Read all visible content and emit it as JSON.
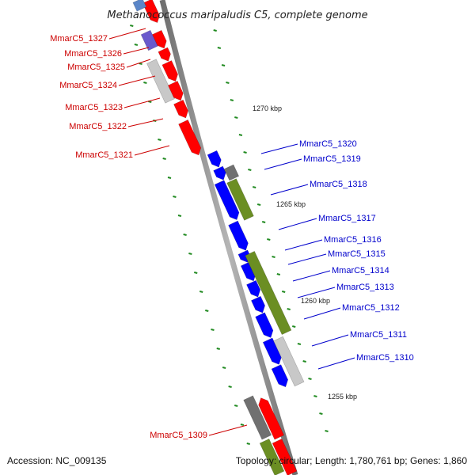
{
  "title": "Methanococcus maripaludis C5, complete genome",
  "footer": {
    "accession": "Accession: NC_009135",
    "topology": "Topology: circular; Length: 1,780,761 bp; Genes: 1,860"
  },
  "scale_labels": [
    "1270 kbp",
    "1265 kbp",
    "1260 kbp",
    "1255 kbp"
  ],
  "colors": {
    "reverse_label": "#cc0000",
    "forward_label": "#0000cc",
    "red": "#ff0000",
    "blue": "#0000ff",
    "green": "#6b8e23",
    "gray": "#c8c8c8",
    "dark_gray": "#707070",
    "purple": "#6a5acd",
    "tick": "#228b22"
  },
  "genes_reverse": [
    "MmarC5_1327",
    "MmarC5_1326",
    "MmarC5_1325",
    "MmarC5_1324",
    "MmarC5_1323",
    "MmarC5_1322",
    "MmarC5_1321",
    "MmarC5_1309"
  ],
  "genes_forward": [
    "MmarC5_1320",
    "MmarC5_1319",
    "MmarC5_1318",
    "MmarC5_1317",
    "MmarC5_1316",
    "MmarC5_1315",
    "MmarC5_1314",
    "MmarC5_1313",
    "MmarC5_1312",
    "MmarC5_1311",
    "MmarC5_1310"
  ]
}
